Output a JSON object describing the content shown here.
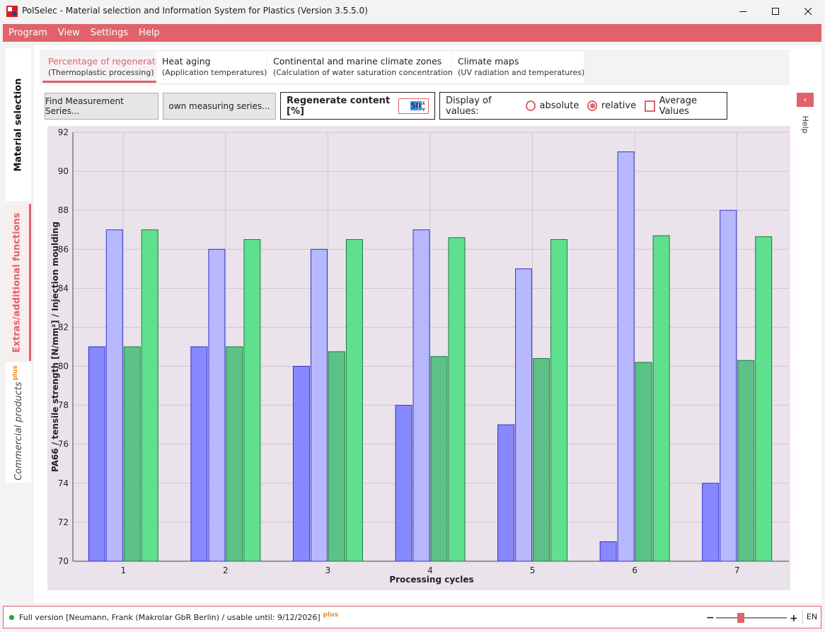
{
  "window": {
    "title": "PolSelec - Material selection and Information System for Plastics (Version 3.5.5.0)",
    "icons": [
      "app-icon",
      "minimize-icon",
      "maximize-icon",
      "close-icon"
    ]
  },
  "menu": [
    "Program",
    "View",
    "Settings",
    "Help"
  ],
  "sidebar": {
    "material_selection": "Material selection",
    "extras": "Extras/additional functions",
    "commercial": "Commercial products",
    "commercial_badge": "plus"
  },
  "tabs": [
    {
      "label": "Percentage of regenerate",
      "sublabel": "(Thermoplastic processing)",
      "active": true
    },
    {
      "label": "Heat aging",
      "sublabel": "(Application temperatures)"
    },
    {
      "label": "Continental and marine climate zones",
      "sublabel": "(Calculation of water saturation concentration)"
    },
    {
      "label": "Climate maps",
      "sublabel": "(UV radiation and temperatures)"
    }
  ],
  "controls": {
    "find_button": "Find Measurement Series...",
    "own_button": "own measuring series...",
    "regen_label": "Regenerate content [%]",
    "regen_value": "50",
    "display_label": "Display of values:",
    "absolute": "absolute",
    "relative": "relative",
    "selected": "relative",
    "average": "Average Values",
    "average_checked": false
  },
  "help_tab": {
    "label": "Help",
    "icon": "chevron-left-icon"
  },
  "chart_data": {
    "type": "bar",
    "categories": [
      "1",
      "2",
      "3",
      "4",
      "5",
      "6",
      "7"
    ],
    "series": [
      {
        "values": [
          81,
          81,
          80,
          78,
          77,
          71,
          74
        ],
        "color": "#8888ff",
        "stroke": "#3232c8"
      },
      {
        "values": [
          87,
          86,
          86,
          87,
          85,
          91,
          88
        ],
        "color": "#b8b8ff",
        "stroke": "#3232c8"
      },
      {
        "values": [
          81,
          81,
          80.75,
          80.5,
          80.4,
          80.2,
          80.3
        ],
        "color": "#5dc287",
        "stroke": "#1e7a3c"
      },
      {
        "values": [
          87,
          86.5,
          86.5,
          86.6,
          86.5,
          86.7,
          86.65
        ],
        "color": "#5fe08e",
        "stroke": "#1e7a3c"
      }
    ],
    "title": "",
    "xlabel": "Processing cycles",
    "ylabel": "PA66 / tensile strength [N/mm²] / Injection moulding",
    "ylim": [
      70,
      92
    ],
    "yticks": [
      "70",
      "72",
      "74",
      "76",
      "78",
      "80",
      "82",
      "84",
      "86",
      "88",
      "90",
      "92"
    ],
    "grid": true
  },
  "status": {
    "text": "Full version [Neumann, Frank (Makrolar GbR Berlin) / usable until: 9/12/2026]",
    "badge": "plus",
    "zoom_minus": "−",
    "zoom_plus": "+",
    "zoom_level": 0.35,
    "language": "EN"
  }
}
